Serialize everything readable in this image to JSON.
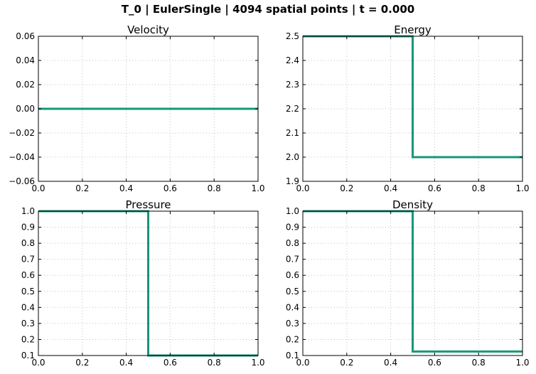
{
  "figure": {
    "title": "T_0 | EulerSingle | 4094 spatial points | t = 0.000",
    "line_color": "#17967a"
  },
  "chart_data": [
    {
      "type": "line",
      "title": "Velocity",
      "xlim": [
        0.0,
        1.0
      ],
      "ylim": [
        -0.06,
        0.06
      ],
      "xticks": [
        "0.0",
        "0.2",
        "0.4",
        "0.6",
        "0.8",
        "1.0"
      ],
      "yticks": [
        "−0.06",
        "−0.04",
        "−0.02",
        "0.00",
        "0.02",
        "0.04",
        "0.06"
      ],
      "grid": true,
      "x": [
        0.0,
        1.0
      ],
      "y": [
        0.0,
        0.0
      ]
    },
    {
      "type": "line",
      "title": "Energy",
      "xlim": [
        0.0,
        1.0
      ],
      "ylim": [
        1.9,
        2.5
      ],
      "xticks": [
        "0.0",
        "0.2",
        "0.4",
        "0.6",
        "0.8",
        "1.0"
      ],
      "yticks": [
        "1.9",
        "2.0",
        "2.1",
        "2.2",
        "2.3",
        "2.4",
        "2.5"
      ],
      "grid": true,
      "x": [
        0.0,
        0.5,
        0.5,
        1.0
      ],
      "y": [
        2.5,
        2.5,
        2.0,
        2.0
      ]
    },
    {
      "type": "line",
      "title": "Pressure",
      "xlim": [
        0.0,
        1.0
      ],
      "ylim": [
        0.1,
        1.0
      ],
      "xticks": [
        "0.0",
        "0.2",
        "0.4",
        "0.6",
        "0.8",
        "1.0"
      ],
      "yticks": [
        "0.1",
        "0.2",
        "0.3",
        "0.4",
        "0.5",
        "0.6",
        "0.7",
        "0.8",
        "0.9",
        "1.0"
      ],
      "grid": true,
      "x": [
        0.0,
        0.5,
        0.5,
        1.0
      ],
      "y": [
        1.0,
        1.0,
        0.1,
        0.1
      ]
    },
    {
      "type": "line",
      "title": "Density",
      "xlim": [
        0.0,
        1.0
      ],
      "ylim": [
        0.1,
        1.0
      ],
      "xticks": [
        "0.0",
        "0.2",
        "0.4",
        "0.6",
        "0.8",
        "1.0"
      ],
      "yticks": [
        "0.1",
        "0.2",
        "0.3",
        "0.4",
        "0.5",
        "0.6",
        "0.7",
        "0.8",
        "0.9",
        "1.0"
      ],
      "grid": true,
      "x": [
        0.0,
        0.5,
        0.5,
        1.0
      ],
      "y": [
        1.0,
        1.0,
        0.125,
        0.125
      ]
    }
  ]
}
